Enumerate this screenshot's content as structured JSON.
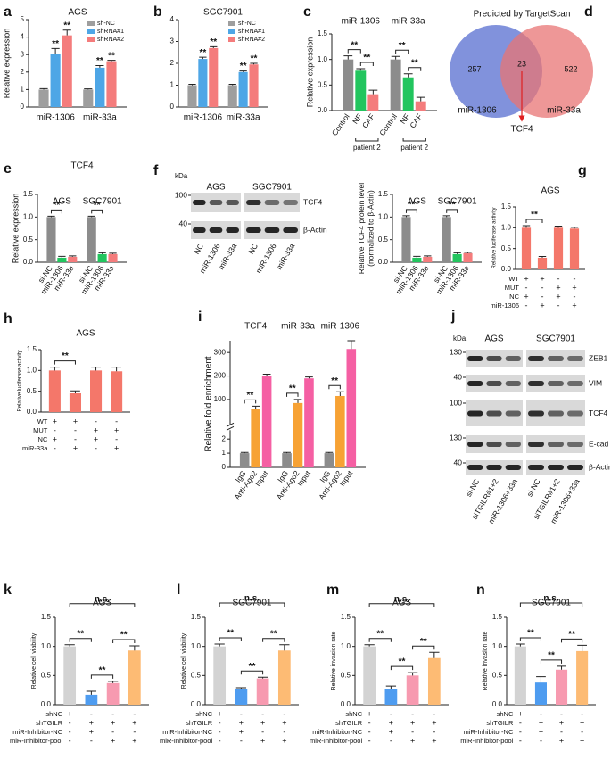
{
  "chart_data": [
    {
      "panel": "a",
      "type": "bar",
      "title": "AGS",
      "ylabel": "Relative expression",
      "categories": [
        "miR-1306",
        "miR-33a"
      ],
      "category_position": "bottom",
      "category_color": "#2323d9",
      "legend": "top-right",
      "series": [
        {
          "name": "sh-NC",
          "color": "#9e9e9e",
          "values": [
            1,
            1
          ],
          "errors": [
            0.05,
            0.04
          ]
        },
        {
          "name": "shRNA#1",
          "color": "#4ea6e6",
          "values": [
            3.05,
            2.25
          ],
          "errors": [
            0.3,
            0.12
          ]
        },
        {
          "name": "shRNA#2",
          "color": "#f47c7c",
          "values": [
            4.1,
            2.62
          ],
          "errors": [
            0.3,
            0.05
          ]
        }
      ],
      "ylim": [
        0,
        5
      ],
      "yticks": [
        0,
        1,
        2,
        3,
        4,
        5
      ],
      "annotations": [
        {
          "text": "**",
          "from": 1,
          "to": 1
        },
        {
          "text": "**",
          "from": 2,
          "to": 2
        },
        {
          "text": "**",
          "from": 4,
          "to": 4
        },
        {
          "text": "**",
          "from": 5,
          "to": 5
        }
      ]
    },
    {
      "panel": "b",
      "type": "bar",
      "title": "SGC7901",
      "categories": [
        "miR-1306",
        "miR-33a"
      ],
      "category_position": "bottom",
      "category_color": "#2323d9",
      "legend": "top-right",
      "series": [
        {
          "name": "sh-NC",
          "color": "#9e9e9e",
          "values": [
            1,
            1
          ],
          "errors": [
            0.04,
            0.04
          ]
        },
        {
          "name": "shRNA#1",
          "color": "#4ea6e6",
          "values": [
            2.2,
            1.6
          ],
          "errors": [
            0.08,
            0.05
          ]
        },
        {
          "name": "shRNA#2",
          "color": "#f47c7c",
          "values": [
            2.7,
            1.95
          ],
          "errors": [
            0.06,
            0.05
          ]
        }
      ],
      "ylim": [
        0,
        4
      ],
      "yticks": [
        0,
        1,
        2,
        3,
        4
      ],
      "annotations": [
        {
          "text": "**",
          "from": 1,
          "to": 1
        },
        {
          "text": "**",
          "from": 2,
          "to": 2
        },
        {
          "text": "**",
          "from": 4,
          "to": 4
        },
        {
          "text": "**",
          "from": 5,
          "to": 5
        }
      ]
    },
    {
      "panel": "c",
      "type": "bar",
      "ylabel": "Relative expression",
      "categories": [
        "miR-1306",
        "miR-33a"
      ],
      "category_position": "top",
      "category_color": "#2323d9",
      "bar_labels": true,
      "group_note": "patient 2",
      "series": [
        {
          "name": "Control",
          "color": "#8c8c8c",
          "values": [
            1,
            1
          ],
          "errors": [
            0.07,
            0.06
          ]
        },
        {
          "name": "NF",
          "color": "#22c55e",
          "values": [
            0.78,
            0.65
          ],
          "errors": [
            0.04,
            0.07
          ]
        },
        {
          "name": "CAF",
          "color": "#f47c7c",
          "values": [
            0.32,
            0.18
          ],
          "errors": [
            0.08,
            0.08
          ]
        }
      ],
      "ylim": [
        0,
        1.5
      ],
      "yticks": [
        {
          "value": 0,
          "label": "0.0"
        },
        0.5,
        {
          "value": 1,
          "label": "1.0"
        },
        1.5
      ],
      "annotations": [
        {
          "text": "**",
          "from": 0,
          "to": 1
        },
        {
          "text": "**",
          "from": 1,
          "to": 2
        },
        {
          "text": "**",
          "from": 3,
          "to": 4
        },
        {
          "text": "**",
          "from": 4,
          "to": 5
        }
      ]
    },
    {
      "panel": "e",
      "type": "bar",
      "title": "TCF4",
      "title_color": "#2323d9",
      "ylabel": "Relative expression",
      "categories": [
        "AGS",
        "SGC7901"
      ],
      "category_position": "top",
      "category_color": "#111111",
      "bar_labels": true,
      "series": [
        {
          "name": "si-NC",
          "color": "#8c8c8c",
          "values": [
            1,
            1
          ],
          "errors": [
            0.02,
            0.02
          ]
        },
        {
          "name": "miR-1306",
          "color": "#22c55e",
          "values": [
            0.1,
            0.18
          ],
          "errors": [
            0.03,
            0.03
          ]
        },
        {
          "name": "miR-33a",
          "color": "#f47c7c",
          "values": [
            0.12,
            0.18
          ],
          "errors": [
            0.02,
            0.02
          ]
        }
      ],
      "ylim": [
        0,
        1.5
      ],
      "yticks": [
        {
          "value": 0,
          "label": "0.0"
        },
        0.5,
        {
          "value": 1,
          "label": "1.0"
        },
        1.5
      ],
      "annotations": [
        {
          "text": "**",
          "from": 0,
          "to": 1
        },
        {
          "text": "**",
          "from": 3,
          "to": 4
        }
      ]
    },
    {
      "type": "bar",
      "ylabel": [
        "Relative TCF4 protein level",
        "(normalized to β-Actin)"
      ],
      "categories": [
        "AGS",
        "SGC7901"
      ],
      "category_position": "top",
      "category_color": "#111111",
      "bar_labels": true,
      "series": [
        {
          "name": "si-NC",
          "color": "#8c8c8c",
          "values": [
            1,
            1
          ],
          "errors": [
            0.03,
            0.03
          ]
        },
        {
          "name": "miR-1306",
          "color": "#22c55e",
          "values": [
            0.1,
            0.18
          ],
          "errors": [
            0.03,
            0.03
          ]
        },
        {
          "name": "miR-33a",
          "color": "#f47c7c",
          "values": [
            0.12,
            0.2
          ],
          "errors": [
            0.02,
            0.02
          ]
        }
      ],
      "ylim": [
        0,
        1.5
      ],
      "yticks": [
        {
          "value": 0,
          "label": "0.0"
        },
        0.5,
        {
          "value": 1,
          "label": "1.0"
        },
        1.5
      ],
      "annotations": [
        {
          "text": "**",
          "from": 0,
          "to": 1
        },
        {
          "text": "**",
          "from": 3,
          "to": 4
        }
      ]
    },
    {
      "panel": "g",
      "type": "bar",
      "title": "AGS",
      "ylabel": "Relative luciferase activity",
      "color": "#f4776a",
      "values": [
        1,
        0.28,
        1,
        0.98
      ],
      "errors": [
        0.05,
        0.03,
        0.04,
        0.03
      ],
      "ylim": [
        0,
        1.5
      ],
      "yticks": [
        {
          "value": 0,
          "label": "0.0"
        },
        0.5,
        {
          "value": 1,
          "label": "1.0"
        },
        1.5
      ],
      "sign_rows": [
        {
          "label": "WT",
          "signs": [
            "+",
            "+",
            "-",
            "-"
          ]
        },
        {
          "label": "MUT",
          "signs": [
            "-",
            "-",
            "+",
            "+"
          ]
        },
        {
          "label": "NC",
          "signs": [
            "+",
            "-",
            "+",
            "-"
          ]
        },
        {
          "label": "miR-1306",
          "signs": [
            "-",
            "+",
            "-",
            "+"
          ]
        }
      ],
      "annotations": [
        {
          "text": "**",
          "from": 0,
          "to": 1
        }
      ]
    },
    {
      "panel": "h",
      "type": "bar",
      "title": "AGS",
      "ylabel": "Relative luciferase activity",
      "color": "#f4776a",
      "values": [
        1,
        0.45,
        1,
        0.98
      ],
      "errors": [
        0.08,
        0.06,
        0.08,
        0.1
      ],
      "ylim": [
        0,
        1.5
      ],
      "yticks": [
        {
          "value": 0,
          "label": "0.0"
        },
        0.5,
        {
          "value": 1,
          "label": "1.0"
        },
        1.5
      ],
      "sign_rows": [
        {
          "label": "WT",
          "signs": [
            "+",
            "+",
            "-",
            "-"
          ]
        },
        {
          "label": "MUT",
          "signs": [
            "-",
            "-",
            "+",
            "+"
          ]
        },
        {
          "label": "NC",
          "signs": [
            "+",
            "-",
            "+",
            "-"
          ]
        },
        {
          "label": "miR-33a",
          "signs": [
            "-",
            "+",
            "-",
            "+"
          ]
        }
      ],
      "annotations": [
        {
          "text": "**",
          "from": 0,
          "to": 1
        }
      ]
    },
    {
      "panel": "i",
      "type": "bar",
      "ylabel": "Relative fold enrichment",
      "categories": [
        "TCF4",
        "miR-33a",
        "miR-1306"
      ],
      "category_position": "top",
      "category_color": "#111111",
      "bar_labels": true,
      "series": [
        {
          "name": "IgG",
          "color": "#8c8c8c",
          "values": [
            1,
            1,
            1
          ],
          "errors": [
            0.05,
            0.05,
            0.05
          ]
        },
        {
          "name": "Anti-Ago2",
          "color": "#f7a234",
          "values": [
            60,
            85,
            115
          ],
          "errors": [
            12,
            15,
            18
          ]
        },
        {
          "name": "Input",
          "color": "#f55fa3",
          "values": [
            200,
            190,
            315
          ],
          "errors": [
            8,
            6,
            35
          ]
        }
      ],
      "ylim": [
        [
          0,
          2.5
        ],
        [
          0,
          350
        ]
      ],
      "yticks": [
        0,
        1,
        2,
        100,
        200,
        300
      ],
      "annotations": [
        {
          "text": "**",
          "from": 0,
          "to": 1
        },
        {
          "text": "**",
          "from": 3,
          "to": 4
        },
        {
          "text": "**",
          "from": 6,
          "to": 7
        }
      ]
    },
    {
      "panel": "k",
      "type": "bar",
      "title": "AGS",
      "ylabel": "Relative cell viability",
      "colors": [
        "#d3d3d3",
        "#4e9cf0",
        "#f79ab0",
        "#fdbb74"
      ],
      "values": [
        1,
        0.17,
        0.37,
        0.93
      ],
      "errors": [
        0.03,
        0.06,
        0.03,
        0.08
      ],
      "ylim": [
        0,
        1.5
      ],
      "yticks": [
        {
          "value": 0,
          "label": "0.0"
        },
        0.5,
        {
          "value": 1,
          "label": "1.0"
        },
        1.5
      ],
      "sign_rows": [
        {
          "label": "shNC",
          "signs": [
            "+",
            "-",
            "-",
            "-"
          ]
        },
        {
          "label": "shTGILR",
          "signs": [
            "-",
            "+",
            "+",
            "+"
          ]
        },
        {
          "label": "miR-Inhibitor-NC",
          "signs": [
            "-",
            "+",
            "-",
            "-"
          ]
        },
        {
          "label": "miR-Inhibitor-pool",
          "signs": [
            "-",
            "-",
            "+",
            "+"
          ]
        }
      ],
      "annotations": [
        {
          "text": "**",
          "from": 1,
          "to": 2
        },
        {
          "text": "**",
          "from": 0,
          "to": 1
        },
        {
          "text": "**",
          "from": 2,
          "to": 3
        },
        {
          "text": "n.s.",
          "from": 0,
          "to": 3
        }
      ]
    },
    {
      "panel": "l",
      "type": "bar",
      "title": "SGC7901",
      "ylabel": "Relative cell viability",
      "colors": [
        "#d3d3d3",
        "#4e9cf0",
        "#f79ab0",
        "#fdbb74"
      ],
      "values": [
        1,
        0.27,
        0.45,
        0.93
      ],
      "errors": [
        0.04,
        0.02,
        0.02,
        0.1
      ],
      "ylim": [
        0,
        1.5
      ],
      "yticks": [
        {
          "value": 0,
          "label": "0.0"
        },
        0.5,
        {
          "value": 1,
          "label": "1.0"
        },
        1.5
      ],
      "sign_rows": [
        {
          "label": "shNC",
          "signs": [
            "+",
            "-",
            "-",
            "-"
          ]
        },
        {
          "label": "shTGILR",
          "signs": [
            "-",
            "+",
            "+",
            "+"
          ]
        },
        {
          "label": "miR-Inhibitor-NC",
          "signs": [
            "-",
            "+",
            "-",
            "-"
          ]
        },
        {
          "label": "miR-Inhibitor-pool",
          "signs": [
            "-",
            "-",
            "+",
            "+"
          ]
        }
      ],
      "annotations": [
        {
          "text": "**",
          "from": 1,
          "to": 2
        },
        {
          "text": "**",
          "from": 0,
          "to": 1
        },
        {
          "text": "**",
          "from": 2,
          "to": 3
        },
        {
          "text": "n.s.",
          "from": 0,
          "to": 3
        }
      ]
    },
    {
      "panel": "m",
      "type": "bar",
      "title": "AGS",
      "ylabel": "Relative invasion rate",
      "colors": [
        "#d3d3d3",
        "#4e9cf0",
        "#f79ab0",
        "#fdbb74"
      ],
      "values": [
        1,
        0.27,
        0.5,
        0.8
      ],
      "errors": [
        0.03,
        0.05,
        0.05,
        0.1
      ],
      "ylim": [
        0,
        1.5
      ],
      "yticks": [
        {
          "value": 0,
          "label": "0.0"
        },
        0.5,
        {
          "value": 1,
          "label": "1.0"
        },
        1.5
      ],
      "sign_rows": [
        {
          "label": "shNC",
          "signs": [
            "+",
            "-",
            "-",
            "-"
          ]
        },
        {
          "label": "shTGILR",
          "signs": [
            "-",
            "+",
            "+",
            "+"
          ]
        },
        {
          "label": "miR-Inhibitor-NC",
          "signs": [
            "-",
            "+",
            "-",
            "-"
          ]
        },
        {
          "label": "miR-Inhibitor-pool",
          "signs": [
            "-",
            "-",
            "+",
            "+"
          ]
        }
      ],
      "annotations": [
        {
          "text": "**",
          "from": 1,
          "to": 2
        },
        {
          "text": "**",
          "from": 0,
          "to": 1
        },
        {
          "text": "**",
          "from": 2,
          "to": 3
        },
        {
          "text": "n.s.",
          "from": 0,
          "to": 3
        }
      ]
    },
    {
      "panel": "n",
      "type": "bar",
      "title": "SGC7901",
      "ylabel": "Relative invasion rate",
      "colors": [
        "#d3d3d3",
        "#4e9cf0",
        "#f79ab0",
        "#fdbb74"
      ],
      "values": [
        1,
        0.38,
        0.6,
        0.92
      ],
      "errors": [
        0.04,
        0.1,
        0.06,
        0.1
      ],
      "ylim": [
        0,
        1.5
      ],
      "yticks": [
        {
          "value": 0,
          "label": "0.0"
        },
        0.5,
        {
          "value": 1,
          "label": "1.0"
        },
        1.5
      ],
      "sign_rows": [
        {
          "label": "shNC",
          "signs": [
            "+",
            "-",
            "-",
            "-"
          ]
        },
        {
          "label": "shTGILR",
          "signs": [
            "-",
            "+",
            "+",
            "+"
          ]
        },
        {
          "label": "miR-Inhibitor-NC",
          "signs": [
            "-",
            "+",
            "-",
            "-"
          ]
        },
        {
          "label": "miR-Inhibitor-pool",
          "signs": [
            "-",
            "-",
            "+",
            "+"
          ]
        }
      ],
      "annotations": [
        {
          "text": "**",
          "from": 1,
          "to": 2
        },
        {
          "text": "**",
          "from": 0,
          "to": 1
        },
        {
          "text": "**",
          "from": 2,
          "to": 3
        },
        {
          "text": "n.s.",
          "from": 0,
          "to": 3
        }
      ]
    }
  ],
  "venn": {
    "panel": "d",
    "title": "Predicted by TargetScan",
    "left_count": 257,
    "overlap_count": 23,
    "right_count": 522,
    "left_label": "miR-1306",
    "right_label": "miR-33a",
    "target": "TCF4"
  },
  "blots": [
    {
      "panel": "f",
      "kda": "kDa",
      "groups": [
        "AGS",
        "SGC7901"
      ],
      "markers": [
        "100",
        "40"
      ],
      "proteins": [
        "TCF4",
        "β-Actin"
      ],
      "lanes": [
        "NC",
        "miR-1306",
        "miR-33a"
      ]
    },
    {
      "panel": "j",
      "kda": "kDa",
      "groups": [
        "AGS",
        "SGC7901"
      ],
      "markers": [
        "130",
        "40",
        "100",
        "130",
        "40"
      ],
      "proteins": [
        "ZEB1",
        "VIM",
        "TCF4",
        "E-cad",
        "β-Actin"
      ],
      "lanes": [
        "si-NC",
        "siTGILR#1+2",
        "miR-1306+33a"
      ]
    }
  ]
}
